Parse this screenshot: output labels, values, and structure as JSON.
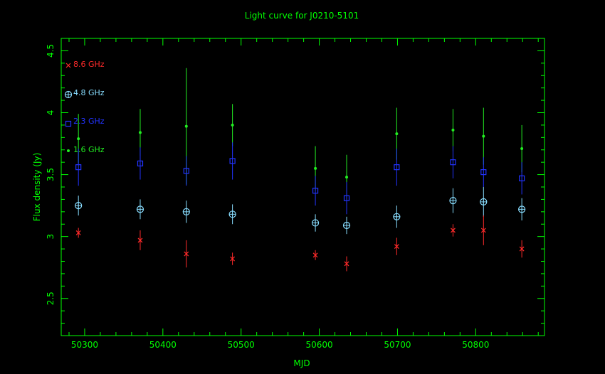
{
  "chart_data": {
    "type": "scatter",
    "title": "Light curve for J0210-5101",
    "xlabel": "MJD",
    "ylabel": "Flux density (Jy)",
    "xlim": [
      50270,
      50888
    ],
    "ylim": [
      2.2,
      4.6
    ],
    "x_ticks": [
      {
        "value": 50300,
        "label": "50300"
      },
      {
        "value": 50400,
        "label": "50400"
      },
      {
        "value": 50500,
        "label": "50500"
      },
      {
        "value": 50600,
        "label": "50600"
      },
      {
        "value": 50700,
        "label": "50700"
      },
      {
        "value": 50800,
        "label": "50800"
      }
    ],
    "y_ticks": [
      {
        "value": 2.5,
        "label": "2.5"
      },
      {
        "value": 3,
        "label": "3"
      },
      {
        "value": 3.5,
        "label": "3.5"
      },
      {
        "value": 4,
        "label": "4"
      },
      {
        "value": 4.5,
        "label": "4.5"
      }
    ],
    "legend_position": "top-left",
    "colors": {
      "axes": "#00ff00",
      "background": "#000000"
    },
    "series": [
      {
        "name": "8.6 GHz",
        "marker": "x",
        "color": "#ff2a2a",
        "points": [
          {
            "x": 50292,
            "y": 3.03,
            "err": 0.04
          },
          {
            "x": 50371,
            "y": 2.97,
            "err": 0.08
          },
          {
            "x": 50430,
            "y": 2.86,
            "err": 0.11
          },
          {
            "x": 50489,
            "y": 2.82,
            "err": 0.05
          },
          {
            "x": 50595,
            "y": 2.85,
            "err": 0.04
          },
          {
            "x": 50635,
            "y": 2.78,
            "err": 0.06
          },
          {
            "x": 50699,
            "y": 2.92,
            "err": 0.07
          },
          {
            "x": 50771,
            "y": 3.05,
            "err": 0.05
          },
          {
            "x": 50810,
            "y": 3.05,
            "err": 0.12
          },
          {
            "x": 50859,
            "y": 2.9,
            "err": 0.07
          }
        ]
      },
      {
        "name": "4.8 GHz",
        "marker": "circle-plus",
        "color": "#88ddff",
        "points": [
          {
            "x": 50292,
            "y": 3.25,
            "err": 0.08
          },
          {
            "x": 50371,
            "y": 3.22,
            "err": 0.08
          },
          {
            "x": 50430,
            "y": 3.2,
            "err": 0.09
          },
          {
            "x": 50489,
            "y": 3.18,
            "err": 0.08
          },
          {
            "x": 50595,
            "y": 3.11,
            "err": 0.07
          },
          {
            "x": 50635,
            "y": 3.09,
            "err": 0.07
          },
          {
            "x": 50699,
            "y": 3.16,
            "err": 0.09
          },
          {
            "x": 50771,
            "y": 3.29,
            "err": 0.1
          },
          {
            "x": 50810,
            "y": 3.28,
            "err": 0.12
          },
          {
            "x": 50859,
            "y": 3.22,
            "err": 0.09
          }
        ]
      },
      {
        "name": "2.3 GHz",
        "marker": "square",
        "color": "#2233ff",
        "points": [
          {
            "x": 50292,
            "y": 3.56,
            "err": 0.15
          },
          {
            "x": 50371,
            "y": 3.59,
            "err": 0.13
          },
          {
            "x": 50430,
            "y": 3.53,
            "err": 0.12
          },
          {
            "x": 50489,
            "y": 3.61,
            "err": 0.15
          },
          {
            "x": 50595,
            "y": 3.37,
            "err": 0.12
          },
          {
            "x": 50635,
            "y": 3.31,
            "err": 0.13
          },
          {
            "x": 50699,
            "y": 3.56,
            "err": 0.15
          },
          {
            "x": 50771,
            "y": 3.6,
            "err": 0.13
          },
          {
            "x": 50810,
            "y": 3.52,
            "err": 0.12
          },
          {
            "x": 50859,
            "y": 3.47,
            "err": 0.13
          }
        ]
      },
      {
        "name": "1.6 GHz",
        "marker": "dot",
        "color": "#22ee22",
        "points": [
          {
            "x": 50292,
            "y": 3.79,
            "err": 0.2
          },
          {
            "x": 50371,
            "y": 3.84,
            "err": 0.19
          },
          {
            "x": 50430,
            "y": 3.89,
            "err": 0.47
          },
          {
            "x": 50489,
            "y": 3.9,
            "err": 0.17
          },
          {
            "x": 50595,
            "y": 3.55,
            "err": 0.18
          },
          {
            "x": 50635,
            "y": 3.48,
            "err": 0.18
          },
          {
            "x": 50699,
            "y": 3.83,
            "err": 0.21
          },
          {
            "x": 50771,
            "y": 3.86,
            "err": 0.17
          },
          {
            "x": 50810,
            "y": 3.81,
            "err": 0.23
          },
          {
            "x": 50859,
            "y": 3.71,
            "err": 0.19
          }
        ]
      }
    ]
  }
}
